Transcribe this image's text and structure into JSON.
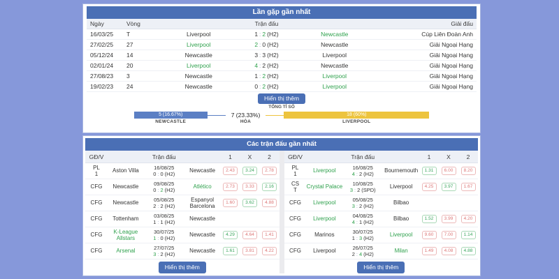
{
  "score_separator": ":",
  "colors": {
    "page_bg": "#8698da",
    "primary_blue": "#4a6fb5",
    "bar_newcastle": "#5b7fc4",
    "bar_liverpool": "#edc43e",
    "win_green": "#2fa14d",
    "odds_red": "#dc7676",
    "odds_green": "#3aa55d"
  },
  "h2h": {
    "title": "Lần gặp gần nhất",
    "columns": {
      "date": "Ngày",
      "round": "Vòng",
      "match": "Trận đấu",
      "league": "Giải đấu"
    },
    "rows": [
      {
        "date": "16/03/25",
        "round": "T",
        "home": "Liverpool",
        "home_green": false,
        "s1": "1",
        "s1_green": false,
        "s2": "2",
        "s2_green": true,
        "tag": "(H2)",
        "away": "Newcastle",
        "away_green": true,
        "league": "Cúp Liên Đoàn Anh"
      },
      {
        "date": "27/02/25",
        "round": "27",
        "home": "Liverpool",
        "home_green": true,
        "s1": "2",
        "s1_green": true,
        "s2": "0",
        "s2_green": false,
        "tag": "(H2)",
        "away": "Newcastle",
        "away_green": false,
        "league": "Giải Ngoại Hạng"
      },
      {
        "date": "05/12/24",
        "round": "14",
        "home": "Newcastle",
        "home_green": false,
        "s1": "3",
        "s1_green": false,
        "s2": "3",
        "s2_green": false,
        "tag": "(H2)",
        "away": "Liverpool",
        "away_green": false,
        "league": "Giải Ngoại Hạng"
      },
      {
        "date": "02/01/24",
        "round": "20",
        "home": "Liverpool",
        "home_green": true,
        "s1": "4",
        "s1_green": true,
        "s2": "2",
        "s2_green": false,
        "tag": "(H2)",
        "away": "Newcastle",
        "away_green": false,
        "league": "Giải Ngoại Hạng"
      },
      {
        "date": "27/08/23",
        "round": "3",
        "home": "Newcastle",
        "home_green": false,
        "s1": "1",
        "s1_green": false,
        "s2": "2",
        "s2_green": true,
        "tag": "(H2)",
        "away": "Liverpool",
        "away_green": true,
        "league": "Giải Ngoại Hạng"
      },
      {
        "date": "19/02/23",
        "round": "24",
        "home": "Newcastle",
        "home_green": false,
        "s1": "0",
        "s1_green": false,
        "s2": "2",
        "s2_green": true,
        "tag": "(H2)",
        "away": "Liverpool",
        "away_green": true,
        "league": "Giải Ngoại Hạng"
      }
    ],
    "show_more": "Hiển thị thêm",
    "total_label": "TỔNG TỈ SỐ",
    "totals": {
      "home": {
        "count": 5,
        "pct": 16.67,
        "text": "5 (16.67%)",
        "label": "NEWCASTLE"
      },
      "draw": {
        "count": 7,
        "pct": 23.33,
        "text": "7 (23.33%)",
        "label": "HÒA"
      },
      "away": {
        "count": 18,
        "pct": 60,
        "text": "18 (60%)",
        "label": "LIVERPOOL"
      }
    }
  },
  "recent": {
    "title": "Các trận đấu gần nhất",
    "columns": {
      "gdv": "GĐ/V",
      "match": "Trận đấu",
      "one": "1",
      "x": "X",
      "two": "2"
    },
    "left": {
      "show_more": "Hiển thị thêm",
      "rows": [
        {
          "gdv": [
            "PL",
            "1"
          ],
          "home": "Aston Villa",
          "home_green": false,
          "date": "16/08/25",
          "s1": "0",
          "s1_green": false,
          "s2": "0",
          "s2_green": false,
          "tag": "(H2)",
          "away": "Newcastle",
          "away_green": false,
          "odds": [
            {
              "v": "2.43",
              "c": "red"
            },
            {
              "v": "3.24",
              "c": "green"
            },
            {
              "v": "2.78",
              "c": "red"
            }
          ]
        },
        {
          "gdv": [
            "CFG"
          ],
          "home": "Newcastle",
          "home_green": false,
          "date": "09/08/25",
          "s1": "0",
          "s1_green": false,
          "s2": "2",
          "s2_green": true,
          "tag": "(H2)",
          "away": "Atlético",
          "away_green": true,
          "odds": [
            {
              "v": "2.73",
              "c": "red"
            },
            {
              "v": "3.33",
              "c": "red"
            },
            {
              "v": "2.16",
              "c": "green"
            }
          ]
        },
        {
          "gdv": [
            "CFG"
          ],
          "home": "Newcastle",
          "home_green": false,
          "date": "05/08/25",
          "s1": "2",
          "s1_green": false,
          "s2": "2",
          "s2_green": false,
          "tag": "(H2)",
          "away": "Espanyol Barcelona",
          "away_green": false,
          "odds": [
            {
              "v": "1.60",
              "c": "red"
            },
            {
              "v": "3.62",
              "c": "green"
            },
            {
              "v": "4.88",
              "c": "red"
            }
          ]
        },
        {
          "gdv": [
            "CFG"
          ],
          "home": "Tottenham",
          "home_green": false,
          "date": "03/08/25",
          "s1": "1",
          "s1_green": false,
          "s2": "1",
          "s2_green": false,
          "tag": "(H2)",
          "away": "Newcastle",
          "away_green": false,
          "odds": []
        },
        {
          "gdv": [
            "CFG"
          ],
          "home": "K-League Allstars",
          "home_green": true,
          "date": "30/07/25",
          "s1": "1",
          "s1_green": true,
          "s2": "0",
          "s2_green": false,
          "tag": "(H2)",
          "away": "Newcastle",
          "away_green": false,
          "odds": [
            {
              "v": "4.29",
              "c": "green"
            },
            {
              "v": "4.64",
              "c": "red"
            },
            {
              "v": "1.41",
              "c": "red"
            }
          ]
        },
        {
          "gdv": [
            "CFG"
          ],
          "home": "Arsenal",
          "home_green": true,
          "date": "27/07/25",
          "s1": "3",
          "s1_green": true,
          "s2": "2",
          "s2_green": false,
          "tag": "(H2)",
          "away": "Newcastle",
          "away_green": false,
          "odds": [
            {
              "v": "1.61",
              "c": "green"
            },
            {
              "v": "3.81",
              "c": "red"
            },
            {
              "v": "4.22",
              "c": "red"
            }
          ]
        }
      ]
    },
    "right": {
      "show_more": "Hiển thị thêm",
      "rows": [
        {
          "gdv": [
            "PL",
            "1"
          ],
          "home": "Liverpool",
          "home_green": true,
          "date": "16/08/25",
          "s1": "4",
          "s1_green": true,
          "s2": "2",
          "s2_green": false,
          "tag": "(H2)",
          "away": "Bournemouth",
          "away_green": false,
          "odds": [
            {
              "v": "1.31",
              "c": "green"
            },
            {
              "v": "6.00",
              "c": "red"
            },
            {
              "v": "8.20",
              "c": "red"
            }
          ]
        },
        {
          "gdv": [
            "CS",
            "T"
          ],
          "home": "Crystal Palace",
          "home_green": true,
          "date": "10/08/25",
          "s1": "3",
          "s1_green": true,
          "s2": "2",
          "s2_green": false,
          "tag": "(SPD)",
          "away": "Liverpool",
          "away_green": false,
          "odds": [
            {
              "v": "4.25",
              "c": "red"
            },
            {
              "v": "3.97",
              "c": "green"
            },
            {
              "v": "1.67",
              "c": "red"
            }
          ]
        },
        {
          "gdv": [
            "CFG"
          ],
          "home": "Liverpool",
          "home_green": true,
          "date": "05/08/25",
          "s1": "3",
          "s1_green": true,
          "s2": "2",
          "s2_green": false,
          "tag": "(H2)",
          "away": "Bilbao",
          "away_green": false,
          "odds": []
        },
        {
          "gdv": [
            "CFG"
          ],
          "home": "Liverpool",
          "home_green": true,
          "date": "04/08/25",
          "s1": "4",
          "s1_green": true,
          "s2": "1",
          "s2_green": false,
          "tag": "(H2)",
          "away": "Bilbao",
          "away_green": false,
          "odds": [
            {
              "v": "1.52",
              "c": "green"
            },
            {
              "v": "3.99",
              "c": "red"
            },
            {
              "v": "4.20",
              "c": "red"
            }
          ]
        },
        {
          "gdv": [
            "CFG"
          ],
          "home": "Marinos",
          "home_green": false,
          "date": "30/07/25",
          "s1": "1",
          "s1_green": false,
          "s2": "3",
          "s2_green": true,
          "tag": "(H2)",
          "away": "Liverpool",
          "away_green": true,
          "odds": [
            {
              "v": "9.60",
              "c": "red"
            },
            {
              "v": "7.00",
              "c": "red"
            },
            {
              "v": "1.14",
              "c": "green"
            }
          ]
        },
        {
          "gdv": [
            "CFG"
          ],
          "home": "Liverpool",
          "home_green": false,
          "date": "26/07/25",
          "s1": "2",
          "s1_green": false,
          "s2": "4",
          "s2_green": true,
          "tag": "(H2)",
          "away": "Milan",
          "away_green": true,
          "odds": [
            {
              "v": "1.49",
              "c": "red"
            },
            {
              "v": "4.08",
              "c": "red"
            },
            {
              "v": "4.88",
              "c": "green"
            }
          ]
        }
      ]
    }
  }
}
